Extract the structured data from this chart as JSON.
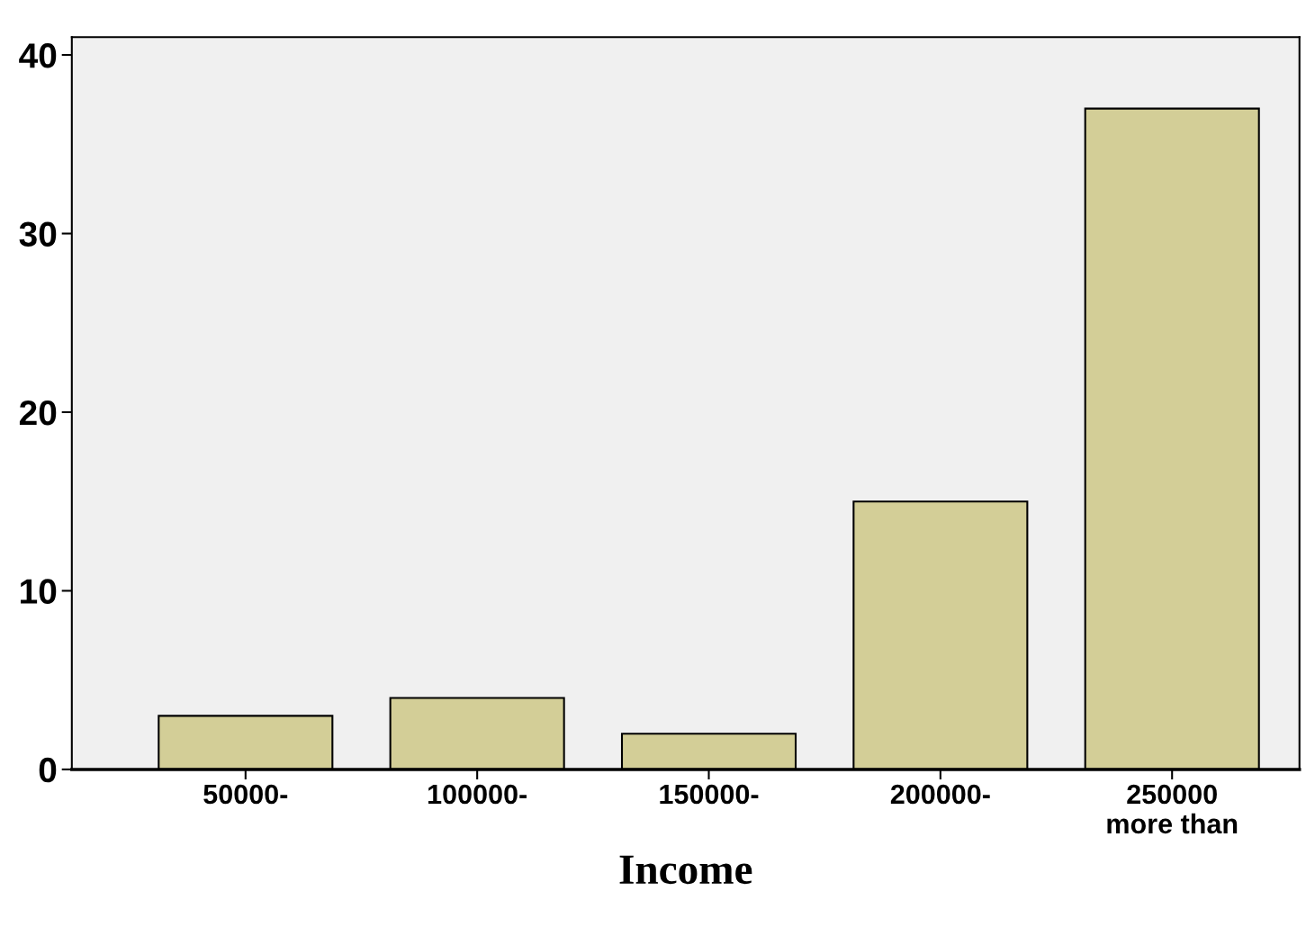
{
  "chart_data": {
    "type": "bar",
    "xlabel": "Income",
    "categories": [
      "50000-",
      "100000-",
      "150000-",
      "200000-",
      "250000\nmore than"
    ],
    "values": [
      3,
      4,
      2,
      15,
      37
    ],
    "color": "#d3ce97",
    "ylim": [
      0,
      41
    ],
    "yticks": [
      0,
      10,
      20,
      30,
      40
    ],
    "grid": false
  }
}
